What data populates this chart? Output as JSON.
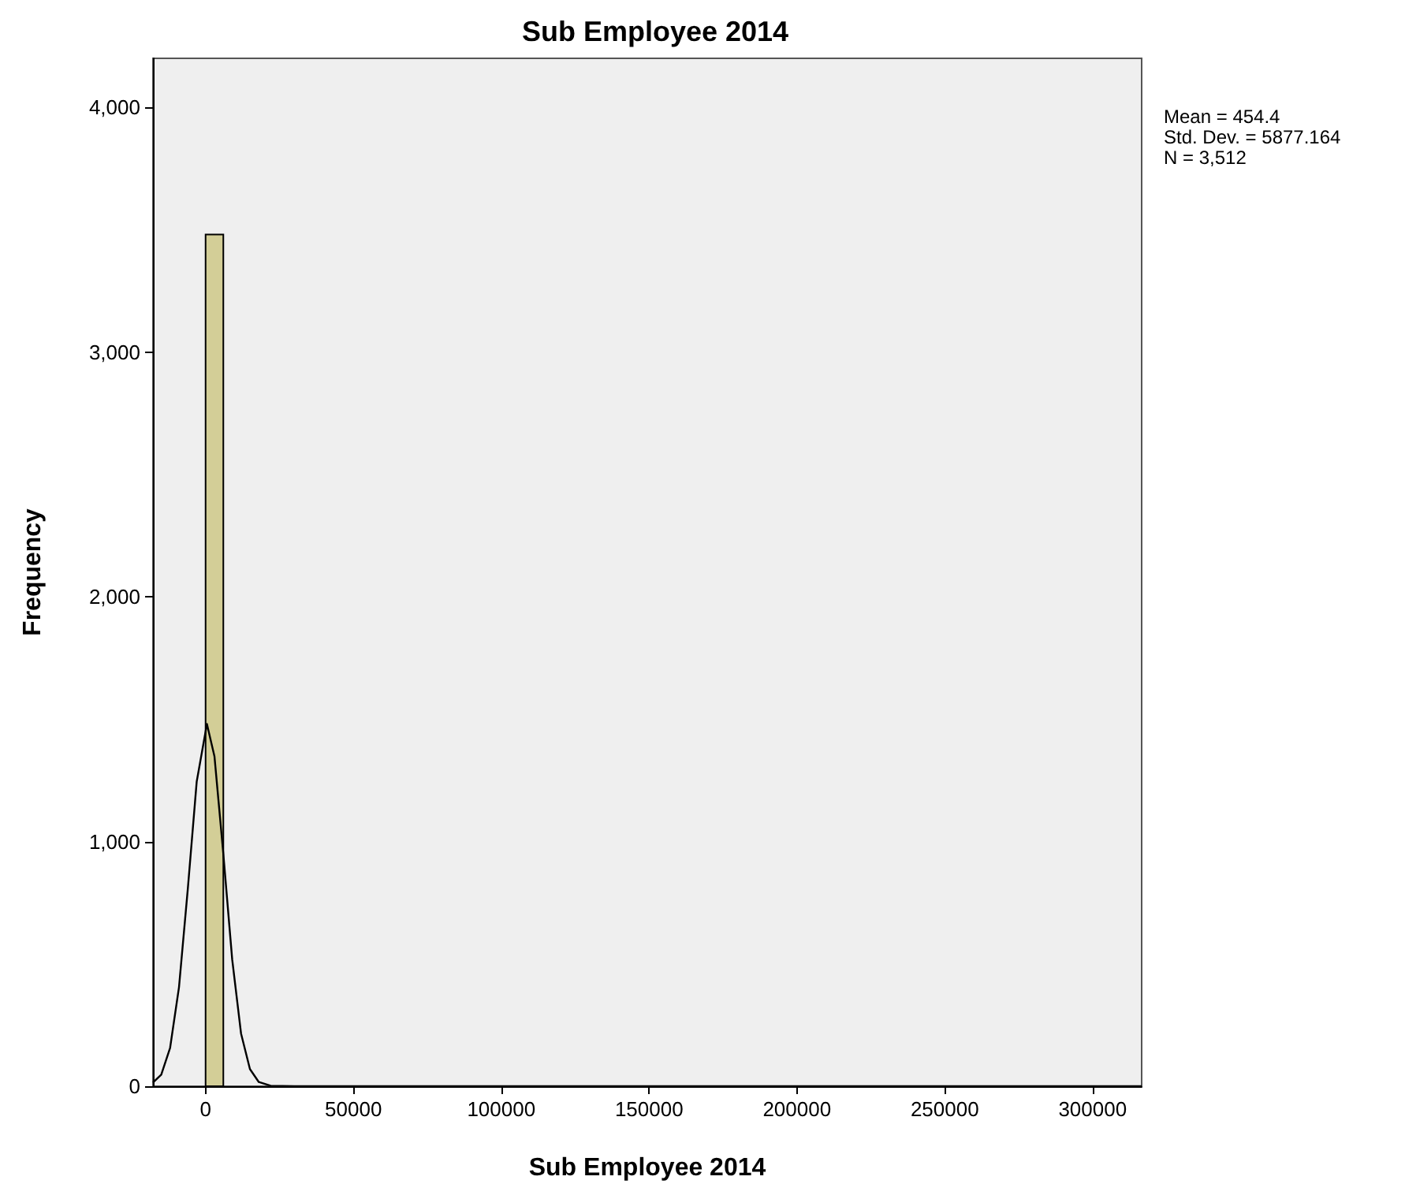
{
  "chart_data": {
    "type": "histogram",
    "title": "Sub Employee 2014",
    "xlabel": "Sub Employee 2014",
    "ylabel": "Frequency",
    "bins": [
      0,
      6000
    ],
    "values": [
      3480
    ],
    "color": "#d3ce97",
    "series": [
      {
        "type": "line",
        "color": "#000000",
        "x": [
          -17800,
          -15000,
          -12000,
          -9000,
          -6000,
          -3000,
          454,
          3000,
          6000,
          9000,
          12000,
          15000,
          18000,
          22000,
          30000,
          316600
        ],
        "values": [
          15,
          47,
          157,
          404,
          808,
          1245,
          1480,
          1348,
          949,
          518,
          215,
          70,
          17,
          2,
          0,
          0
        ]
      }
    ],
    "xlim": [
      -17800,
      316600
    ],
    "xticks": [
      0,
      50000,
      100000,
      150000,
      200000,
      250000,
      300000
    ],
    "ylim": [
      0,
      4200
    ],
    "yticks": [
      0,
      {
        "value": 1000,
        "label": "1,000"
      },
      {
        "value": 2000,
        "label": "2,000"
      },
      {
        "value": 3000,
        "label": "3,000"
      },
      {
        "value": 4000,
        "label": "4,000"
      }
    ],
    "grid": false,
    "marker": "none",
    "line_style": "solid",
    "annotations": [
      "Mean = 454.4",
      "Std. Dev. = 5877.164",
      "N = 3,512"
    ]
  }
}
